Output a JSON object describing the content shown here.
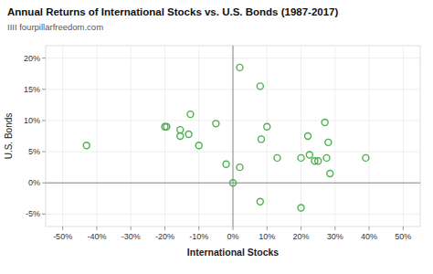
{
  "chart_data": {
    "type": "scatter",
    "title": "Annual Returns of International Stocks vs. U.S. Bonds (1987-2017)",
    "subtitle": "IIII fourpillarfreedom.com",
    "xlabel": "International Stocks",
    "ylabel": "U.S. Bonds",
    "x": [
      -0.43,
      -0.2,
      -0.195,
      -0.155,
      -0.155,
      -0.125,
      -0.13,
      -0.1,
      -0.05,
      -0.02,
      0.0,
      0.02,
      0.02,
      0.08,
      0.083,
      0.1,
      0.13,
      0.2,
      0.22,
      0.225,
      0.24,
      0.25,
      0.27,
      0.275,
      0.28,
      0.285,
      0.39,
      0.08,
      0.2
    ],
    "values": [
      0.06,
      0.09,
      0.09,
      0.085,
      0.075,
      0.11,
      0.078,
      0.06,
      0.095,
      0.03,
      0.0,
      0.185,
      0.025,
      0.155,
      0.07,
      0.09,
      0.04,
      0.04,
      0.075,
      0.045,
      0.035,
      0.035,
      0.097,
      0.04,
      0.065,
      0.015,
      0.04,
      -0.03,
      -0.04
    ],
    "color": "#4CAF50",
    "marker": "open-circle",
    "xlim": [
      -0.55,
      0.55
    ],
    "ylim": [
      -0.07,
      0.22
    ],
    "xticks": [
      {
        "value": -0.5,
        "label": "-50%"
      },
      {
        "value": -0.4,
        "label": "-40%"
      },
      {
        "value": -0.3,
        "label": "-30%"
      },
      {
        "value": -0.2,
        "label": "-20%"
      },
      {
        "value": -0.1,
        "label": "-10%"
      },
      {
        "value": 0.0,
        "label": "0%"
      },
      {
        "value": 0.1,
        "label": "10%"
      },
      {
        "value": 0.2,
        "label": "20%"
      },
      {
        "value": 0.3,
        "label": "30%"
      },
      {
        "value": 0.4,
        "label": "40%"
      },
      {
        "value": 0.5,
        "label": "50%"
      }
    ],
    "yticks": [
      {
        "value": -0.05,
        "label": "-5%"
      },
      {
        "value": 0.0,
        "label": "0%"
      },
      {
        "value": 0.05,
        "label": "5%"
      },
      {
        "value": 0.1,
        "label": "10%"
      },
      {
        "value": 0.15,
        "label": "15%"
      },
      {
        "value": 0.2,
        "label": "20%"
      }
    ]
  }
}
